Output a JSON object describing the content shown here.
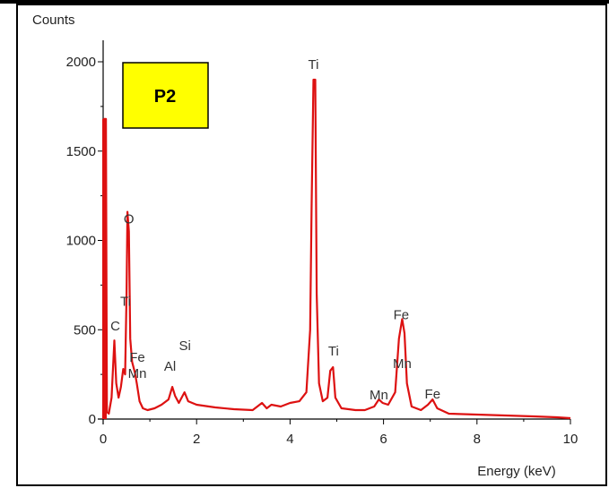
{
  "chart_data": {
    "type": "line",
    "ylabel": "Counts",
    "xlabel": "Energy (keV)",
    "xlim": [
      0,
      10
    ],
    "ylim": [
      0,
      2000
    ],
    "x_ticks": [
      "0",
      "2",
      "4",
      "6",
      "8",
      "10"
    ],
    "y_ticks": [
      "0",
      "500",
      "1000",
      "1500",
      "2000"
    ],
    "sample_label": "P2",
    "sample_label_color": "#ffff00",
    "line_color": "#dd1111",
    "spectrum": [
      [
        0.0,
        0
      ],
      [
        0.02,
        1680
      ],
      [
        0.06,
        1680
      ],
      [
        0.08,
        40
      ],
      [
        0.12,
        30
      ],
      [
        0.18,
        120
      ],
      [
        0.24,
        440
      ],
      [
        0.28,
        200
      ],
      [
        0.33,
        120
      ],
      [
        0.38,
        180
      ],
      [
        0.43,
        280
      ],
      [
        0.47,
        250
      ],
      [
        0.5,
        700
      ],
      [
        0.52,
        1160
      ],
      [
        0.55,
        1050
      ],
      [
        0.58,
        450
      ],
      [
        0.62,
        320
      ],
      [
        0.68,
        260
      ],
      [
        0.72,
        200
      ],
      [
        0.78,
        100
      ],
      [
        0.85,
        60
      ],
      [
        0.95,
        50
      ],
      [
        1.1,
        60
      ],
      [
        1.25,
        80
      ],
      [
        1.4,
        110
      ],
      [
        1.48,
        180
      ],
      [
        1.54,
        130
      ],
      [
        1.62,
        90
      ],
      [
        1.74,
        150
      ],
      [
        1.82,
        100
      ],
      [
        2.0,
        80
      ],
      [
        2.4,
        65
      ],
      [
        2.8,
        55
      ],
      [
        3.2,
        50
      ],
      [
        3.4,
        90
      ],
      [
        3.5,
        60
      ],
      [
        3.6,
        80
      ],
      [
        3.8,
        70
      ],
      [
        4.0,
        90
      ],
      [
        4.2,
        100
      ],
      [
        4.35,
        150
      ],
      [
        4.43,
        500
      ],
      [
        4.46,
        1180
      ],
      [
        4.5,
        1900
      ],
      [
        4.54,
        1900
      ],
      [
        4.57,
        700
      ],
      [
        4.62,
        200
      ],
      [
        4.7,
        100
      ],
      [
        4.8,
        120
      ],
      [
        4.86,
        270
      ],
      [
        4.92,
        290
      ],
      [
        4.97,
        120
      ],
      [
        5.1,
        60
      ],
      [
        5.4,
        50
      ],
      [
        5.6,
        50
      ],
      [
        5.8,
        70
      ],
      [
        5.9,
        110
      ],
      [
        5.98,
        90
      ],
      [
        6.1,
        80
      ],
      [
        6.25,
        150
      ],
      [
        6.33,
        450
      ],
      [
        6.4,
        560
      ],
      [
        6.45,
        480
      ],
      [
        6.5,
        200
      ],
      [
        6.6,
        70
      ],
      [
        6.8,
        50
      ],
      [
        6.95,
        80
      ],
      [
        7.05,
        110
      ],
      [
        7.15,
        60
      ],
      [
        7.4,
        30
      ],
      [
        8.0,
        25
      ],
      [
        8.6,
        20
      ],
      [
        9.2,
        15
      ],
      [
        9.7,
        10
      ],
      [
        10.0,
        5
      ]
    ],
    "annotations": [
      {
        "text": "Ti",
        "x": 4.5,
        "y": 1960
      },
      {
        "text": "O",
        "x": 0.55,
        "y": 1095
      },
      {
        "text": "Ti",
        "x": 0.48,
        "y": 635
      },
      {
        "text": "C",
        "x": 0.26,
        "y": 495
      },
      {
        "text": "Fe",
        "x": 0.73,
        "y": 320
      },
      {
        "text": "Mn",
        "x": 0.73,
        "y": 230
      },
      {
        "text": "Si",
        "x": 1.75,
        "y": 385
      },
      {
        "text": "Al",
        "x": 1.43,
        "y": 270
      },
      {
        "text": "Ti",
        "x": 4.93,
        "y": 355
      },
      {
        "text": "Mn",
        "x": 5.9,
        "y": 110
      },
      {
        "text": "Fe",
        "x": 6.38,
        "y": 560
      },
      {
        "text": "Mn",
        "x": 6.4,
        "y": 285
      },
      {
        "text": "Fe",
        "x": 7.05,
        "y": 115
      }
    ]
  }
}
